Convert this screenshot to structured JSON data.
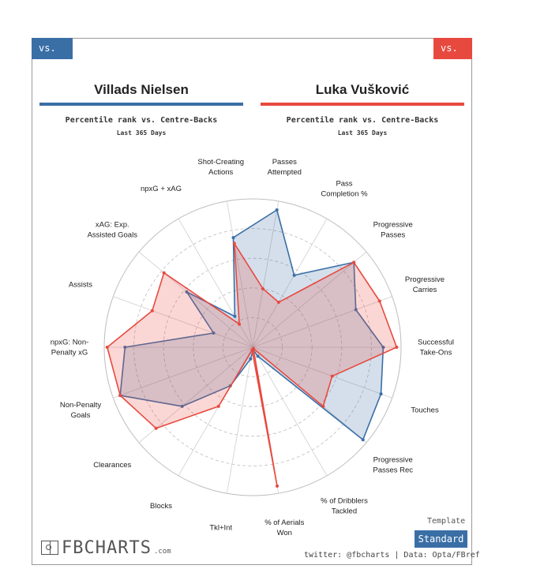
{
  "tabs": {
    "left": "vs. CB",
    "right": "vs. CB"
  },
  "players": [
    {
      "name": "Villads Nielsen",
      "color": "#3a6fa6",
      "subtitle": "Percentile rank vs. Centre-Backs",
      "period": "Last 365 Days"
    },
    {
      "name": "Luka Vušković",
      "color": "#e8493f",
      "subtitle": "Percentile rank vs. Centre-Backs",
      "period": "Last 365 Days"
    }
  ],
  "template": {
    "label": "Template",
    "value": "Standard"
  },
  "logo": {
    "text": "FBCHARTS",
    "suffix": ".com"
  },
  "credit": "twitter: @fbcharts | Data: Opta/FBref",
  "chart_data": {
    "type": "radar",
    "rmax": 100,
    "grid": true,
    "categories": [
      [
        "Passes",
        "Attempted"
      ],
      [
        "Pass",
        "Completion %"
      ],
      [
        "Progressive",
        "Passes"
      ],
      [
        "Progressive",
        "Carries"
      ],
      [
        "Successful",
        "Take-Ons"
      ],
      [
        "Touches"
      ],
      [
        "Progressive",
        "Passes Rec"
      ],
      [
        "% of Dribblers",
        "Tackled"
      ],
      [
        "% of Aerials",
        "Won"
      ],
      [
        "Tkl+Int"
      ],
      [
        "Blocks"
      ],
      [
        "Clearances"
      ],
      [
        "Non-Penalty",
        "Goals"
      ],
      [
        "npxG: Non-",
        "Penalty xG"
      ],
      [
        "Assists"
      ],
      [
        "xAG: Exp.",
        "Assisted Goals"
      ],
      [
        "npxG + xAG"
      ],
      [
        "Shot-Creating",
        "Actions"
      ]
    ],
    "series": [
      {
        "name": "Villads Nielsen",
        "color": "#3a6fa6",
        "values": [
          94,
          56,
          89,
          74,
          88,
          92,
          97,
          7,
          2,
          8,
          30,
          62,
          95,
          86,
          28,
          58,
          24,
          75
        ]
      },
      {
        "name": "Luka Vušković",
        "color": "#e8493f",
        "values": [
          40,
          35,
          89,
          91,
          97,
          57,
          62,
          1,
          95,
          2,
          46,
          85,
          95,
          98,
          72,
          78,
          18,
          71
        ]
      }
    ]
  }
}
